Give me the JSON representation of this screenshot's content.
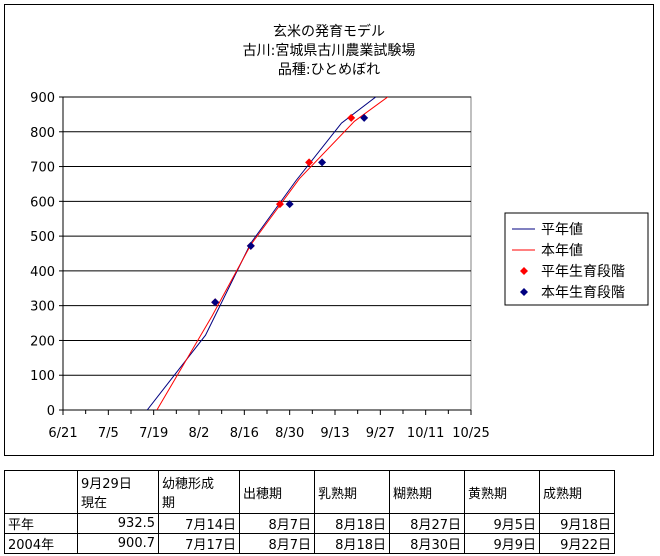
{
  "chart_data": {
    "type": "line",
    "title": [
      "玄米の発育モデル",
      "古川:宮城県古川農業試験場",
      "品種:ひとめぼれ"
    ],
    "x_ticks": [
      "6/21",
      "7/5",
      "7/19",
      "8/2",
      "8/16",
      "8/30",
      "9/13",
      "9/27",
      "10/11",
      "10/25"
    ],
    "xlim": [
      "6/21",
      "10/25"
    ],
    "y_ticks": [
      "0",
      "100",
      "200",
      "300",
      "400",
      "500",
      "600",
      "700",
      "800",
      "900"
    ],
    "ylim": [
      0,
      900
    ],
    "grid": "horizontal",
    "legend_position": "right",
    "series": [
      {
        "name": "平年値",
        "kind": "line",
        "color": "#000080",
        "points": [
          [
            "7/17",
            0
          ],
          [
            "8/4",
            215
          ],
          [
            "8/18",
            480
          ],
          [
            "9/1",
            660
          ],
          [
            "9/15",
            825
          ],
          [
            "9/27",
            910
          ]
        ]
      },
      {
        "name": "本年値",
        "kind": "line",
        "color": "#ff0000",
        "points": [
          [
            "7/20",
            0
          ],
          [
            "8/6",
            270
          ],
          [
            "8/18",
            475
          ],
          [
            "9/2",
            665
          ],
          [
            "9/19",
            830
          ],
          [
            "9/30",
            905
          ]
        ]
      },
      {
        "name": "平年生育段階",
        "kind": "marker",
        "color": "#ff0000",
        "points": [
          [
            "8/7",
            310
          ],
          [
            "8/18",
            472
          ],
          [
            "8/27",
            592
          ],
          [
            "9/5",
            712
          ],
          [
            "9/18",
            840
          ]
        ]
      },
      {
        "name": "本年生育段階",
        "kind": "marker",
        "color": "#000080",
        "points": [
          [
            "8/7",
            310
          ],
          [
            "8/18",
            472
          ],
          [
            "8/30",
            592
          ],
          [
            "9/9",
            712
          ],
          [
            "9/22",
            840
          ]
        ]
      }
    ]
  },
  "table": {
    "headers": [
      "",
      "9月29日\n現在",
      "幼穂形成\n期",
      "出穂期",
      "乳熟期",
      "糊熟期",
      "黄熟期",
      "成熟期"
    ],
    "rows": [
      [
        "平年",
        "932.5",
        "7月14日",
        "8月7日",
        "8月18日",
        "8月27日",
        "9月5日",
        "9月18日"
      ],
      [
        "2004年",
        "900.7",
        "7月17日",
        "8月7日",
        "8月18日",
        "8月30日",
        "9月9日",
        "9月22日"
      ]
    ]
  }
}
